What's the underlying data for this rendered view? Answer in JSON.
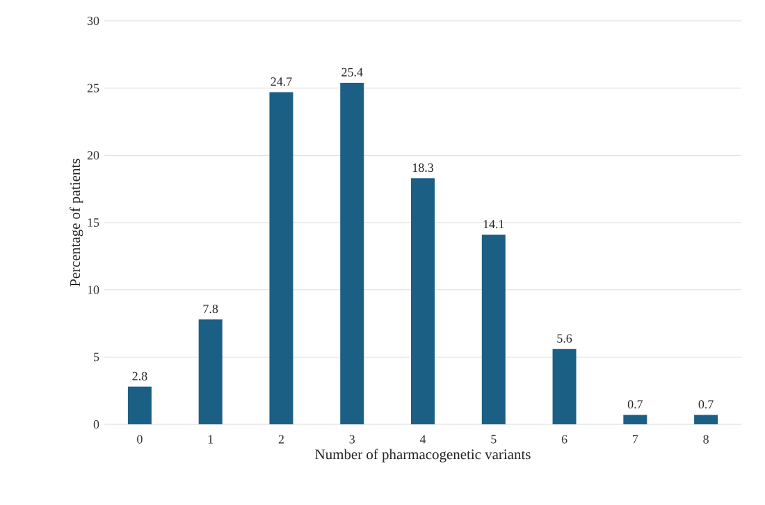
{
  "chart_data": {
    "type": "bar",
    "xlabel": "Number of pharmacogenetic variants",
    "ylabel": "Percentage of patients",
    "categories": [
      "0",
      "1",
      "2",
      "3",
      "4",
      "5",
      "6",
      "7",
      "8"
    ],
    "values": [
      2.8,
      7.8,
      24.7,
      25.4,
      18.3,
      14.1,
      5.6,
      0.7,
      0.7
    ],
    "color": "#1c5f84",
    "ylim": [
      0,
      30
    ],
    "yticks": [
      0,
      5,
      10,
      15,
      20,
      25,
      30
    ],
    "grid": "y",
    "data_labels": true
  }
}
